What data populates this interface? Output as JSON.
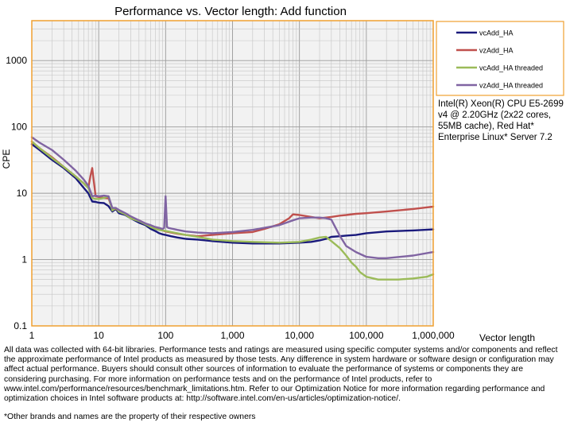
{
  "chart_data": {
    "type": "line",
    "title": "Performance vs. Vector length: Add function",
    "xlabel": "Vector length",
    "ylabel": "CPE",
    "x_scale": "log",
    "y_scale": "log",
    "xlim": [
      1,
      1000000
    ],
    "ylim": [
      0.1,
      4000
    ],
    "x_ticks": [
      1,
      10,
      100,
      1000,
      10000,
      100000,
      1000000
    ],
    "x_tick_labels": [
      "1",
      "10",
      "100",
      "1,000",
      "10,000",
      "100,000",
      "1,000,000"
    ],
    "y_ticks": [
      0.1,
      1,
      10,
      100,
      1000
    ],
    "y_tick_labels": [
      "0.1",
      "1",
      "10",
      "100",
      "1000"
    ],
    "grid": true,
    "legend_position": "right-top",
    "series": [
      {
        "name": "vcAdd_HA",
        "color": "#1a1a7c",
        "x": [
          1,
          1.3,
          2,
          3,
          4.5,
          6,
          7,
          8,
          9,
          10,
          12,
          14,
          16,
          18,
          20,
          25,
          30,
          40,
          50,
          60,
          70,
          80,
          90,
          100,
          120,
          150,
          200,
          300,
          500,
          1000,
          2000,
          5000,
          10000,
          15000,
          20000,
          25000,
          30000,
          40000,
          50000,
          70000,
          100000,
          200000,
          500000,
          1000000
        ],
        "y": [
          55,
          45,
          32,
          24,
          17,
          12,
          10,
          7.5,
          7.4,
          7.2,
          7.1,
          6.4,
          5.3,
          5.8,
          5.0,
          4.7,
          4.2,
          3.6,
          3.3,
          2.9,
          2.7,
          2.5,
          2.4,
          2.35,
          2.25,
          2.15,
          2.05,
          2.0,
          1.9,
          1.8,
          1.75,
          1.75,
          1.8,
          1.85,
          1.95,
          2.05,
          2.2,
          2.25,
          2.3,
          2.35,
          2.5,
          2.65,
          2.75,
          2.85
        ]
      },
      {
        "name": "vzAdd_HA",
        "color": "#c0504d",
        "x": [
          1,
          1.3,
          2,
          3,
          4.5,
          6,
          7,
          7.5,
          8,
          9,
          10,
          12,
          14,
          16,
          18,
          20,
          25,
          30,
          40,
          50,
          60,
          70,
          80,
          90,
          100,
          150,
          200,
          300,
          500,
          1000,
          2000,
          3000,
          5000,
          7000,
          8000,
          10000,
          15000,
          20000,
          25000,
          30000,
          40000,
          50000,
          70000,
          100000,
          200000,
          500000,
          1000000
        ],
        "y": [
          60,
          48,
          35,
          25,
          18,
          14,
          12,
          18,
          24,
          9,
          8.8,
          8.5,
          8.4,
          5.8,
          5.8,
          5.5,
          4.8,
          4.4,
          3.9,
          3.5,
          3.2,
          3.0,
          2.85,
          2.75,
          2.65,
          2.45,
          2.35,
          2.25,
          2.35,
          2.5,
          2.6,
          2.9,
          3.4,
          4.2,
          4.8,
          4.7,
          4.4,
          4.2,
          4.3,
          4.4,
          4.6,
          4.7,
          4.9,
          5.0,
          5.3,
          5.8,
          6.3
        ]
      },
      {
        "name": "vcAdd_HA threaded",
        "color": "#9bbb59",
        "x": [
          1,
          1.3,
          2,
          3,
          4.5,
          6,
          7,
          8,
          9,
          10,
          12,
          14,
          16,
          18,
          20,
          25,
          30,
          40,
          50,
          60,
          70,
          80,
          90,
          100,
          150,
          200,
          300,
          500,
          1000,
          2000,
          5000,
          10000,
          15000,
          20000,
          25000,
          30000,
          40000,
          50000,
          60000,
          70000,
          80000,
          100000,
          150000,
          200000,
          300000,
          500000,
          800000,
          1000000
        ],
        "y": [
          60,
          48,
          34,
          25,
          18,
          14,
          12,
          8.5,
          8.2,
          8.2,
          8.5,
          9,
          5.5,
          6.0,
          5.3,
          4.8,
          4.2,
          3.8,
          3.4,
          3.1,
          2.9,
          2.8,
          2.75,
          2.7,
          2.5,
          2.35,
          2.2,
          2.0,
          1.9,
          1.85,
          1.8,
          1.85,
          2.0,
          2.15,
          2.2,
          1.9,
          1.5,
          1.15,
          0.9,
          0.78,
          0.65,
          0.55,
          0.5,
          0.5,
          0.5,
          0.52,
          0.55,
          0.6
        ]
      },
      {
        "name": "vzAdd_HA threaded",
        "color": "#8064a2",
        "x": [
          1,
          1.3,
          2,
          3,
          4.5,
          6,
          7,
          8,
          9,
          10,
          12,
          14,
          16,
          18,
          20,
          25,
          30,
          40,
          50,
          60,
          70,
          80,
          90,
          95,
          100,
          105,
          110,
          150,
          200,
          300,
          500,
          1000,
          2000,
          5000,
          8000,
          10000,
          15000,
          20000,
          25000,
          30000,
          40000,
          50000,
          70000,
          100000,
          150000,
          200000,
          500000,
          1000000
        ],
        "y": [
          70,
          58,
          45,
          32,
          22,
          16,
          13,
          9,
          9.2,
          9,
          9.2,
          9,
          6.0,
          6.0,
          5.6,
          5.0,
          4.5,
          3.9,
          3.5,
          3.3,
          3.1,
          3.0,
          2.9,
          3.0,
          9.0,
          3.1,
          3.0,
          2.8,
          2.65,
          2.55,
          2.5,
          2.6,
          2.8,
          3.3,
          3.9,
          4.2,
          4.3,
          4.3,
          4.2,
          4.0,
          2.3,
          1.6,
          1.3,
          1.1,
          1.05,
          1.05,
          1.15,
          1.3
        ]
      }
    ]
  },
  "notes": {
    "system_info": "Intel(R) Xeon(R) CPU E5-2699 v4 @ 2.20GHz (2x22 cores, 55MB cache), Red Hat* Enterprise Linux* Server 7.2",
    "disclaimer": "All data was collected with 64-bit libraries. Performance tests and ratings are measured using specific computer systems and/or components and reflect the approximate performance of Intel products as measured by those tests. Any difference in system hardware or software design or configuration may affect actual performance. Buyers should consult other sources of information to evaluate the performance of systems or components they are considering purchasing. For more information on performance tests and on the performance of Intel products, refer to www.intel.com/performance/resources/benchmark_limitations.htm. Refer to our Optimization Notice for more information regarding performance and optimization choices in Intel software products at: http://software.intel.com/en-us/articles/optimization-notice/.",
    "footnote": "*Other brands and names are the property of their respective owners"
  }
}
